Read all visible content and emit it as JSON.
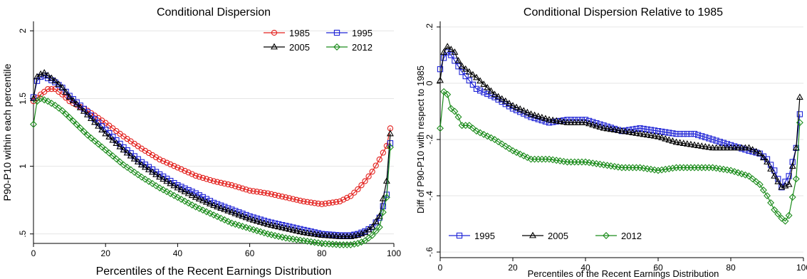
{
  "chart_data": [
    {
      "type": "line",
      "title": "Conditional Dispersion",
      "xlabel": "Percentiles of the Recent Earnings Distribution",
      "ylabel": "P90-P10 within each percentile",
      "xlim": [
        0,
        100
      ],
      "ylim": [
        0.43,
        2.07
      ],
      "xticks": [
        0,
        20,
        40,
        60,
        80,
        100
      ],
      "xtick_labels": [
        "0",
        "20",
        "40",
        "60",
        "80",
        "100"
      ],
      "yticks": [
        0.5,
        1,
        1.5,
        2
      ],
      "ytick_labels": [
        ".5",
        "1",
        "1.5",
        "2"
      ],
      "grid": true,
      "legend_position": "top-right",
      "legend_columns": 2,
      "series": [
        {
          "name": "1985",
          "color": "#e3221f",
          "marker": "circle",
          "x": [
            0,
            2,
            4,
            6,
            8,
            10,
            15,
            20,
            25,
            30,
            35,
            40,
            45,
            50,
            55,
            60,
            65,
            70,
            75,
            80,
            85,
            88,
            90,
            92,
            94,
            96,
            98,
            99
          ],
          "y": [
            1.48,
            1.53,
            1.57,
            1.57,
            1.53,
            1.48,
            1.41,
            1.32,
            1.22,
            1.13,
            1.05,
            0.99,
            0.93,
            0.89,
            0.86,
            0.82,
            0.8,
            0.77,
            0.74,
            0.72,
            0.74,
            0.78,
            0.83,
            0.89,
            0.96,
            1.05,
            1.15,
            1.28
          ]
        },
        {
          "name": "1995",
          "color": "#1f24d6",
          "marker": "square",
          "x": [
            0,
            1,
            2,
            3,
            4,
            6,
            8,
            10,
            15,
            20,
            25,
            30,
            35,
            40,
            45,
            50,
            55,
            60,
            65,
            70,
            75,
            80,
            85,
            88,
            90,
            92,
            94,
            96,
            98,
            99
          ],
          "y": [
            1.51,
            1.63,
            1.66,
            1.67,
            1.65,
            1.62,
            1.58,
            1.52,
            1.4,
            1.27,
            1.14,
            1.03,
            0.94,
            0.86,
            0.8,
            0.73,
            0.68,
            0.63,
            0.59,
            0.56,
            0.53,
            0.5,
            0.49,
            0.49,
            0.5,
            0.52,
            0.55,
            0.62,
            0.79,
            1.17
          ]
        },
        {
          "name": "2005",
          "color": "#000000",
          "marker": "triangle",
          "x": [
            0,
            1,
            2,
            3,
            4,
            6,
            8,
            10,
            15,
            20,
            25,
            30,
            35,
            40,
            45,
            50,
            55,
            60,
            65,
            70,
            75,
            80,
            85,
            88,
            90,
            92,
            94,
            96,
            98,
            99
          ],
          "y": [
            1.5,
            1.66,
            1.68,
            1.69,
            1.67,
            1.63,
            1.58,
            1.51,
            1.38,
            1.24,
            1.12,
            1.01,
            0.92,
            0.84,
            0.77,
            0.71,
            0.66,
            0.61,
            0.57,
            0.54,
            0.51,
            0.49,
            0.48,
            0.48,
            0.49,
            0.51,
            0.55,
            0.63,
            0.89,
            1.24
          ]
        },
        {
          "name": "2012",
          "color": "#1c8c1c",
          "marker": "diamond",
          "x": [
            0,
            1,
            2,
            3,
            4,
            6,
            8,
            10,
            15,
            20,
            25,
            30,
            35,
            40,
            45,
            50,
            55,
            60,
            65,
            70,
            75,
            80,
            85,
            88,
            90,
            92,
            94,
            96,
            98,
            99
          ],
          "y": [
            1.31,
            1.48,
            1.5,
            1.49,
            1.48,
            1.45,
            1.41,
            1.36,
            1.23,
            1.12,
            1.01,
            0.92,
            0.84,
            0.77,
            0.7,
            0.64,
            0.58,
            0.54,
            0.5,
            0.47,
            0.45,
            0.43,
            0.42,
            0.42,
            0.43,
            0.45,
            0.49,
            0.55,
            0.77,
            1.14
          ]
        }
      ]
    },
    {
      "type": "line",
      "title": "Conditional Dispersion Relative to 1985",
      "xlabel": "Percentiles of the Recent Earnings Distribution",
      "ylabel": "Diff of P90-P10 with respect to 1985",
      "xlim": [
        0,
        100
      ],
      "ylim": [
        -0.62,
        0.22
      ],
      "xticks": [
        0,
        20,
        40,
        60,
        80,
        100
      ],
      "xtick_labels": [
        "0",
        "20",
        "40",
        "60",
        "80",
        "100"
      ],
      "yticks": [
        -0.6,
        -0.4,
        -0.2,
        0,
        0.2
      ],
      "ytick_labels": [
        "-.6",
        "-.4",
        "-.2",
        "0",
        ".2"
      ],
      "grid": true,
      "legend_position": "bottom",
      "legend_columns": 3,
      "series": [
        {
          "name": "1995",
          "color": "#1f24d6",
          "marker": "square",
          "x": [
            0,
            1,
            2,
            3,
            4,
            5,
            6,
            8,
            10,
            15,
            20,
            25,
            30,
            35,
            40,
            45,
            50,
            55,
            60,
            65,
            70,
            75,
            80,
            85,
            88,
            90,
            92,
            94,
            96,
            98,
            99
          ],
          "y": [
            0.05,
            0.09,
            0.11,
            0.1,
            0.08,
            0.06,
            0.04,
            0.01,
            -0.02,
            -0.05,
            -0.09,
            -0.12,
            -0.14,
            -0.13,
            -0.13,
            -0.15,
            -0.17,
            -0.16,
            -0.17,
            -0.18,
            -0.18,
            -0.2,
            -0.22,
            -0.24,
            -0.25,
            -0.27,
            -0.31,
            -0.37,
            -0.33,
            -0.23,
            -0.11
          ]
        },
        {
          "name": "2005",
          "color": "#000000",
          "marker": "triangle",
          "x": [
            0,
            1,
            2,
            3,
            4,
            5,
            6,
            8,
            10,
            15,
            20,
            25,
            30,
            35,
            40,
            45,
            50,
            55,
            60,
            65,
            70,
            75,
            80,
            85,
            88,
            90,
            92,
            94,
            96,
            98,
            99
          ],
          "y": [
            0.01,
            0.11,
            0.13,
            0.12,
            0.11,
            0.08,
            0.06,
            0.04,
            0.02,
            -0.04,
            -0.08,
            -0.11,
            -0.13,
            -0.14,
            -0.14,
            -0.16,
            -0.17,
            -0.18,
            -0.19,
            -0.21,
            -0.22,
            -0.23,
            -0.23,
            -0.23,
            -0.25,
            -0.28,
            -0.33,
            -0.37,
            -0.36,
            -0.23,
            -0.05
          ]
        },
        {
          "name": "2012",
          "color": "#1c8c1c",
          "marker": "diamond",
          "x": [
            0,
            1,
            2,
            3,
            4,
            5,
            6,
            8,
            10,
            15,
            20,
            25,
            30,
            35,
            40,
            45,
            50,
            55,
            60,
            65,
            70,
            75,
            80,
            85,
            88,
            90,
            92,
            94,
            95,
            96,
            98,
            99
          ],
          "y": [
            -0.16,
            -0.03,
            -0.04,
            -0.09,
            -0.1,
            -0.12,
            -0.15,
            -0.15,
            -0.17,
            -0.2,
            -0.24,
            -0.27,
            -0.27,
            -0.28,
            -0.28,
            -0.29,
            -0.3,
            -0.3,
            -0.31,
            -0.3,
            -0.3,
            -0.3,
            -0.31,
            -0.33,
            -0.36,
            -0.4,
            -0.45,
            -0.48,
            -0.49,
            -0.47,
            -0.34,
            -0.14
          ]
        }
      ]
    }
  ]
}
